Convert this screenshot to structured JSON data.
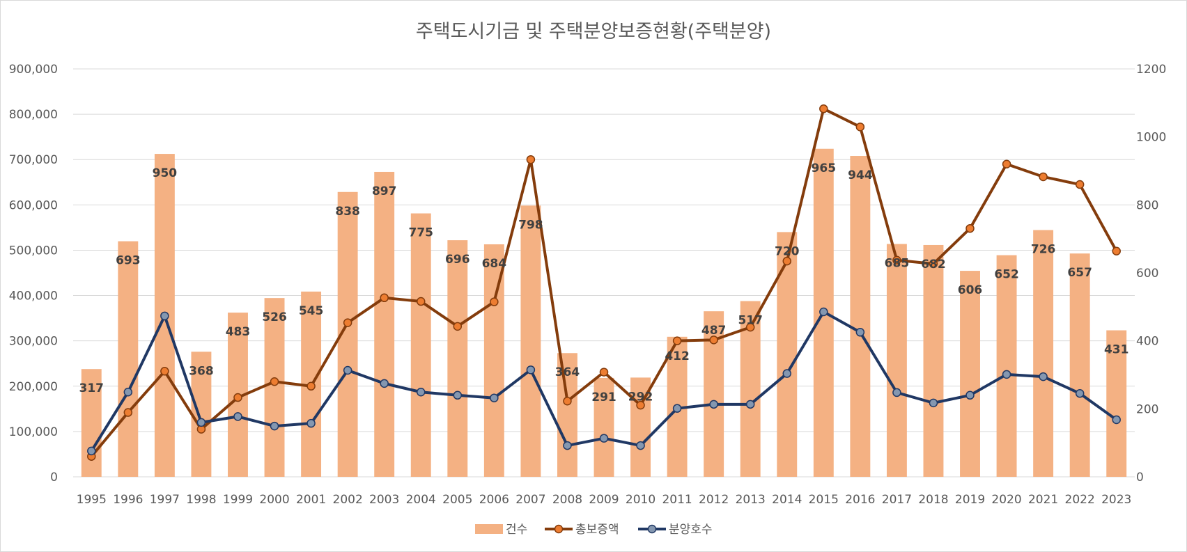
{
  "chart_data": {
    "type": "bar",
    "title": "주택도시기금 및 주택분양보증현황(주택분양)",
    "categories": [
      "1995",
      "1996",
      "1997",
      "1998",
      "1999",
      "2000",
      "2001",
      "2002",
      "2003",
      "2004",
      "2005",
      "2006",
      "2007",
      "2008",
      "2009",
      "2010",
      "2011",
      "2012",
      "2013",
      "2014",
      "2015",
      "2016",
      "2017",
      "2018",
      "2019",
      "2020",
      "2021",
      "2022",
      "2023"
    ],
    "left_axis": {
      "ylim": [
        0,
        900000
      ],
      "ticks": [
        "0",
        "100,000",
        "200,000",
        "300,000",
        "400,000",
        "500,000",
        "600,000",
        "700,000",
        "800,000",
        "900,000"
      ]
    },
    "right_axis": {
      "ylim": [
        0,
        1200
      ],
      "ticks": [
        "0",
        "200",
        "400",
        "600",
        "800",
        "1000",
        "1200"
      ]
    },
    "grid": true,
    "legend_position": "bottom",
    "series": [
      {
        "name": "건수",
        "kind": "bar",
        "axis": "right",
        "color": "#f4b183",
        "data_labels": true,
        "values": [
          317,
          693,
          950,
          368,
          483,
          526,
          545,
          838,
          897,
          775,
          696,
          684,
          798,
          364,
          291,
          292,
          412,
          487,
          517,
          720,
          965,
          944,
          685,
          682,
          606,
          652,
          726,
          657,
          431
        ]
      },
      {
        "name": "총보증액",
        "kind": "line",
        "axis": "left",
        "color": "#843c0c",
        "marker_color": "#ed7d31",
        "values": [
          45000,
          142000,
          233000,
          105000,
          175000,
          210000,
          200000,
          340000,
          395000,
          387000,
          332000,
          386000,
          700000,
          167000,
          231000,
          158000,
          300000,
          302000,
          330000,
          476000,
          812000,
          772000,
          478000,
          470000,
          548000,
          690000,
          662000,
          645000,
          498000
        ]
      },
      {
        "name": "분양호수",
        "kind": "line",
        "axis": "left",
        "color": "#203864",
        "marker_color": "#8497b0",
        "values": [
          57000,
          187000,
          355000,
          120000,
          133000,
          112000,
          118000,
          235000,
          206000,
          187000,
          180000,
          174000,
          236000,
          69000,
          85000,
          69000,
          151000,
          160000,
          160000,
          228000,
          364000,
          319000,
          186000,
          163000,
          180000,
          226000,
          221000,
          184000,
          126000
        ]
      }
    ]
  }
}
